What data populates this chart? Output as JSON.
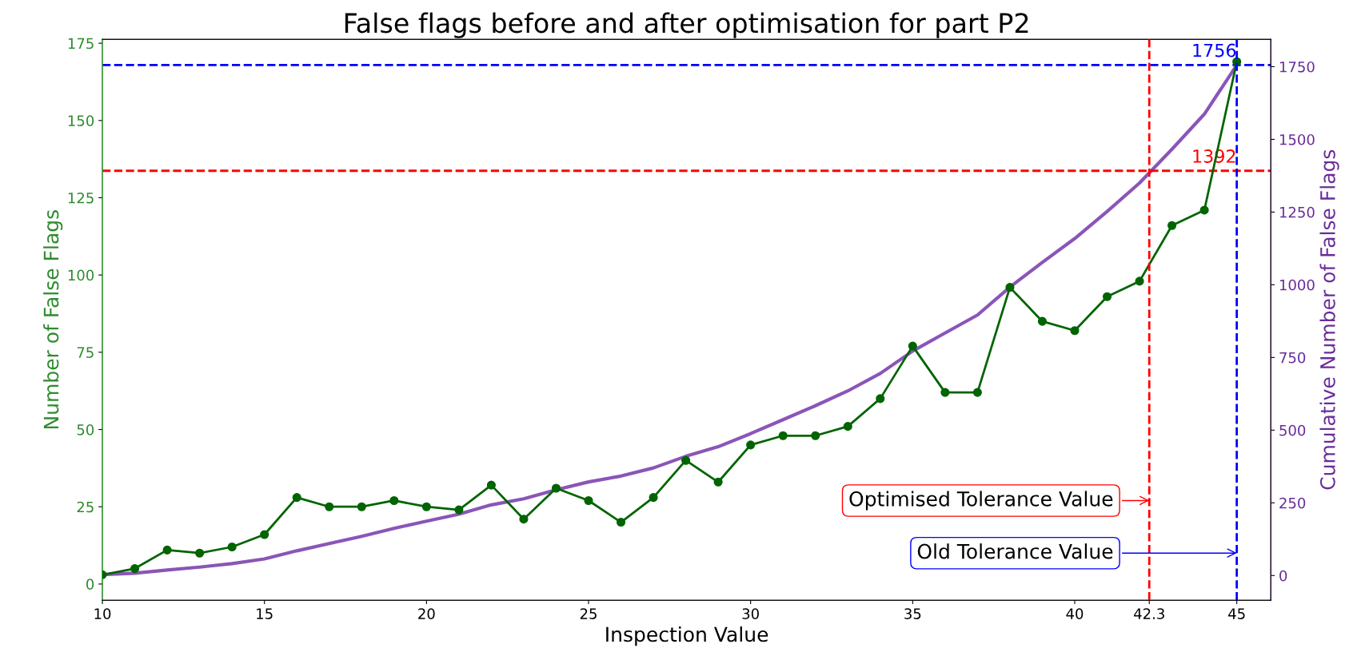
{
  "chart_data": {
    "type": "line",
    "title": "False flags before and after optimisation for part P2",
    "xlabel": "Inspection Value",
    "ylabel": "Number of False Flags",
    "y2label": "Cumulative Number of False Flags",
    "x": [
      10,
      11,
      12,
      13,
      14,
      15,
      16,
      17,
      18,
      19,
      20,
      21,
      22,
      23,
      24,
      25,
      26,
      27,
      28,
      29,
      30,
      31,
      32,
      33,
      34,
      35,
      36,
      37,
      38,
      39,
      40,
      41,
      42,
      43,
      44,
      45
    ],
    "series": [
      {
        "color": "#006400",
        "marker": "circle",
        "values": [
          3,
          5,
          11,
          10,
          12,
          16,
          28,
          25,
          25,
          27,
          25,
          24,
          32,
          21,
          31,
          27,
          20,
          28,
          40,
          33,
          45,
          48,
          48,
          51,
          60,
          77,
          62,
          62,
          96,
          85,
          82,
          93,
          98,
          116,
          121,
          169
        ]
      },
      {
        "color": "#8a55b8",
        "axis": "y2",
        "marker": "none",
        "values": [
          3,
          8,
          19,
          29,
          41,
          57,
          85,
          110,
          135,
          162,
          187,
          211,
          243,
          264,
          295,
          322,
          342,
          370,
          410,
          443,
          488,
          536,
          584,
          635,
          695,
          772,
          834,
          896,
          992,
          1077,
          1159,
          1252,
          1350,
          1466,
          1587,
          1756
        ]
      }
    ],
    "xlim": [
      10,
      46.05
    ],
    "xticks": [
      10,
      15,
      20,
      25,
      30,
      35,
      40,
      42.3,
      45
    ],
    "ylim": [
      -5.25,
      176.25
    ],
    "yticks": [
      0,
      25,
      50,
      75,
      100,
      125,
      150,
      175
    ],
    "y2lim": [
      -85,
      1844
    ],
    "y2ticks": [
      0,
      250,
      500,
      750,
      1000,
      1250,
      1500,
      1750
    ],
    "ref_lines": [
      {
        "axis": "y2",
        "value": 1392,
        "label": "1392",
        "color": "#ff0000",
        "line_style": "dashed"
      },
      {
        "axis": "y2",
        "value": 1756,
        "label": "1756",
        "color": "#0000ff",
        "line_style": "dashed"
      },
      {
        "axis": "x",
        "value": 42.3,
        "color": "#ff0000",
        "line_style": "dashed"
      },
      {
        "axis": "x",
        "value": 45,
        "color": "#0000ff",
        "line_style": "dashed"
      }
    ],
    "annotations": [
      {
        "text": "Optimised Tolerance Value",
        "x": 42.3,
        "y": 27
      },
      {
        "text": "Old Tolerance Value",
        "x": 45,
        "y": 10
      }
    ],
    "grid": false,
    "legend": false
  }
}
